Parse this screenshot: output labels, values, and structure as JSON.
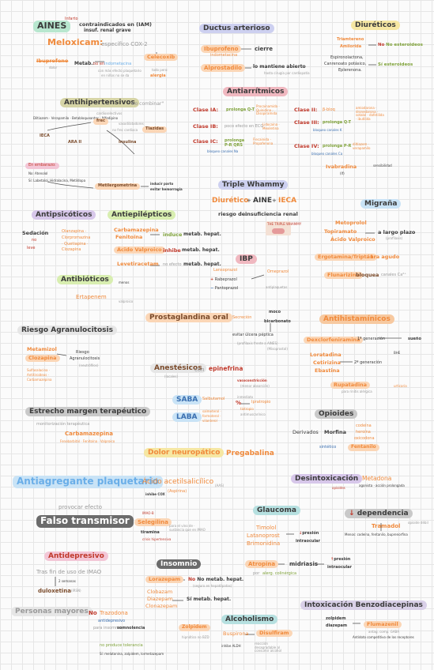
{
  "aines": {
    "title": "AINES",
    "tag": "Infarto",
    "contra": "contraindicados en (IAM)",
    "contra2": "insuf. renal grave",
    "meloxicam": "Meloxicam:",
    "meloxicam_desc": "específico COX-2",
    "celecoxib": "Celecoxib",
    "celecoxib_note": "todo pero:",
    "celecoxib_note2": "alergia",
    "ibuprofeno": "Ibuprofeno",
    "ibuprofeno_note": "dolor",
    "metab": "Metab.:",
    "metab_no": "no en",
    "metab_ind": "Indometacina",
    "metab_note": "con más efecto plaquetario",
    "metab_note2": "en niños no se da"
  },
  "ductus": {
    "title": "Ductus arterioso",
    "ibuprofeno": "Ibuprofeno",
    "ibuprofeno_arrow": "cierre",
    "ibuprofeno_sub": "indometacina",
    "alprostadilo": "Alprostadilo",
    "alprostadilo_arrow": "lo mantiene abierto",
    "alprostadilo_sub": "hasta cirugía por cardiopatía"
  },
  "diureticos": {
    "title": "Diuréticos",
    "triamtereno": "Triamtereno",
    "amilorida": "Amilorida",
    "no_estruct": "No esteroideos",
    "espiro": "Espironolactona,",
    "canre": "Canrenoato potásico,",
    "eple": "Eplerenona.",
    "si_estruct": "Sí esteroideos"
  },
  "antihipertensivos": {
    "title": "Antihipertensivos",
    "combinar": "\"no combinar\"",
    "line1": "Diltiazem · Verapamilo · Betabloqueantes · Nifedipino",
    "cardio": "cardioselectivos",
    "frec": "frec",
    "no_frec": "no frec cardiaca",
    "vaso": "vasodilatadores",
    "tiazidas": "Tiazidas",
    "ieca": "IECA",
    "ara2": "ARA II",
    "insulina": "Insulina",
    "embarazo": "En embarazo:",
    "no_embarazo": "No: Atenolol",
    "si_embarazo": "Sí: Labetalol, Hidralacina, Metildopa",
    "metilergometrina": "Metilergometrina",
    "inducir": "inducir parto",
    "evitar": "evitar hemorragia"
  },
  "antiarritmicos": {
    "title": "Antiarrítmicos",
    "c1a": "Clase IA:",
    "c1a_desc": "prolonga Q-T",
    "c1a_drugs": "Procainamida · Quinidina · Disopiramida",
    "c1b": "Clase IB:",
    "c1b_desc": "poco efecto en ECG",
    "c1b_drugs": "Lidocaína · Mexiletina",
    "c1c": "Clase IC:",
    "c1c_desc": "prolonga P-R QRS",
    "c1c_drugs": "Flecainida · Propafenona",
    "c1c_note": "bloqueo canales Na",
    "c2": "Clase II:",
    "c2_desc": "β-bloq",
    "c3": "Clase III:",
    "c3_desc": "prolonga Q-T",
    "c3_drugs": "amiodarona · dronedarona · sotalol · dofetilida · ibutilida",
    "c3_note": "bloqueo canales K",
    "c4": "Clase IV:",
    "c4_desc": "prolonga P-R",
    "c4_drugs": "diltiazem · verapamilo",
    "c4_note": "bloqueo canales Ca",
    "ivabradina": "Ivabradina",
    "ivab_note": "sensibilidad",
    "ivab_sub": "(If)"
  },
  "triple_whammy": {
    "title": "Triple Whammy",
    "diuretico": "Diurético",
    "aine": "AINE",
    "ieca": "IECA",
    "plus": "+",
    "riesgo": "riesgo de:",
    "insuf": "insuficiencia renal",
    "badge": "THE TRIPLE WHAMMY"
  },
  "migrana": {
    "title": "Migraña",
    "metoprolol": "Metoprolol",
    "topiramato": "Topiramato",
    "valproico": "Ácido Valproico",
    "prev": "a largo plazo",
    "prev_sub": "(profilaxis)",
    "ergot": "Ergotamina/Triptán",
    "agudo": "1ra agudo",
    "flunarizina": "Flunarizina",
    "bloquea": "bloquea",
    "canales": "canales Ca²⁺"
  },
  "antipsicoticos": {
    "title": "Antipsicóticos",
    "sedacion": "Sedación",
    "no": "no",
    "leve": "leve",
    "drugs": "Olanzapina · Clorpromazina · Quetiapina · Clozapina",
    "note": "Ziprasidona",
    "aripiprazol": "Aripiprazol"
  },
  "antiepilepticos": {
    "title": "Antiepilépticos",
    "carba": "Carbamazepina",
    "feno": "Fenitoína",
    "induce": "induce",
    "metab": "metab. hepat.",
    "valproico": "Ácido Valproico",
    "inhibe": "inhibe",
    "leve": "Levetiracetam",
    "no_efecto": "no efecto",
    "metab2": "metab. hepat."
  },
  "antibioticos": {
    "title": "Antibióticos",
    "ertapenem": "Ertapenem",
    "note": "menos",
    "note2": "valproico"
  },
  "ibp": {
    "title": "IBP",
    "lanso": "Lansoprazol",
    "rabe": "Rabeprazol",
    "panto": "Pantoprazol",
    "ome": "Omeprazol",
    "note": "antiplaquetas"
  },
  "prostaglandina": {
    "title": "Prostaglandina oral",
    "secr": "Secreción",
    "moco": "moco",
    "bicar": "bicarbonato",
    "evitar": "evitar úlcera péptica",
    "sub": "(profilaxis frente a AINES)",
    "sub2": "(Misoprostol)"
  },
  "antihistaminicos": {
    "title": "Antihistamínicos",
    "dexclor": "Dexclorfeniramina",
    "primera": "1ª generación",
    "sueno": "sueño",
    "loratadina": "Loratadina",
    "cetirizina": "Cetirizina",
    "ebastina": "Ebastina",
    "segunda": "2ª generación",
    "rupatadina": "Rupatadina",
    "rupa_note": "para rinitis alérgica",
    "rupa_note2": "urticaria",
    "bhe": "BHE"
  },
  "agranulocitosis": {
    "title": "Riesgo Agranulocitosis",
    "metamizol": "Metamizol",
    "clozapina": "Clozapina",
    "riesgo": "Riesgo",
    "agranu": "Agranulocitosis",
    "neutropenia": "(neutrófilos)",
    "others": "Sulfasalacina · Antitiroideos · Carbamazepina"
  },
  "anestesicos": {
    "title": "Anestésicos",
    "con": "con",
    "epinefrina": "epinefrina",
    "sub": "(locales)",
    "vaso": "vasoconstricción",
    "vaso_sub": "(menor absorción)"
  },
  "saba": {
    "saba": "SABA",
    "saba_drug": "Salbutamol",
    "laba": "LABA",
    "laba_drugs": "salmeterol · formoterol · vilanterol",
    "percent": "%",
    "ipra": "Ipratropio",
    "tio": "tiotropio",
    "ipra_note": "inmediato",
    "anti": "antimuscarínico"
  },
  "estrecho": {
    "title": "Estrecho margen terapéutico",
    "sub": "monitorización terapéutica",
    "carba": "Carbamazepina",
    "drugs": "Fenobarbital · Fenitoína · Valproico"
  },
  "opioides": {
    "title": "Opioides",
    "derivados": "Derivados",
    "morfina": "Morfina",
    "codeina": "codeína",
    "heroina": "heroína",
    "oxicodona": "oxicodona",
    "sintetico": "sintético",
    "fentanilo": "Fentanilo"
  },
  "neuropatico": {
    "title": "Dolor neuropático",
    "pregabalina": "Pregabalina"
  },
  "antiagregante": {
    "title": "Antiagregante plaquetario",
    "aspirina": "Ácido acetilsalicílico",
    "aspirina_sub": "(Aspirina)",
    "dosis": "(AAS)",
    "note": "inhibe COX"
  },
  "desintox": {
    "title": "Desintoxicación",
    "metadona": "Metadona",
    "note": "opioides",
    "note2": "agonista · acción prolongada"
  },
  "falso": {
    "title": "Falso transmisor",
    "provocar": "provocar efecto",
    "selegilina": "Selegilina",
    "selegilina_note": "IMAO-B",
    "tiramina": "tiramina",
    "tiramina_note": "crisis hipertensiva",
    "note": "para el vino de · sustancia que en IMAO"
  },
  "glaucoma": {
    "title": "Glaucoma",
    "timolol": "Timolol",
    "latanoprost": "Latanoprost",
    "brimo": "Brimonidina",
    "presion": "presión",
    "intraocular": "intraocular",
    "atropina": "Atropina",
    "midriasis": "midriasis",
    "presion2": "presión",
    "intraocular2": "intraocular",
    "por": "por",
    "alerg": "alerg. colinérgica"
  },
  "dependencia": {
    "title": "dependencia",
    "tramadol": "Tramadol",
    "note": "opioide débil",
    "note2": "Menos: codeína, fentanilo, buprenorfina"
  },
  "antidepresivo": {
    "title": "Antidepresivo",
    "tras": "Tras fin de uso de IMAO",
    "semanas": "2 semanas",
    "duloxetina": "duloxetina",
    "sub": "(IRSN)"
  },
  "insomnio": {
    "title": "Insomnio",
    "lorazepam": "Lorazepam",
    "no_metab": "No metab. hepat.",
    "no_sub": "(seguro en hepatópatas)",
    "clobazam": "Clobazam",
    "diazepam": "Diazepam",
    "clonazepam": "Clonazepam",
    "si_metab": "Sí metab. hepat."
  },
  "alcoholismo": {
    "title": "Alcoholismo",
    "buspirona": "Buspirona",
    "disulfiram": "Disulfiram",
    "zolpidem": "Zolpidem",
    "note": "inhibe ALDH",
    "note2": "reacción desagradable al consumir alcohol",
    "zolpi_note": "hipnótico no BZD"
  },
  "mayores": {
    "title": "Personas mayores",
    "no": "No",
    "trazodona": "Trazodona",
    "sub": "antidepresivo",
    "para": "para insomnio",
    "somnolencia": "somnolencia",
    "si_note": "no produce tolerancia",
    "si_note2": "Sí: melatonina, zolpidem, lormetazepam"
  },
  "benzo": {
    "title": "Intoxicación Benzodiacepinas",
    "zolpidem": "zolpidem",
    "diazepam": "diazepam",
    "flumazenil": "Flumazenil",
    "note": "antag. comp. GABA",
    "note2": "Antídoto competitivo de los receptores"
  }
}
